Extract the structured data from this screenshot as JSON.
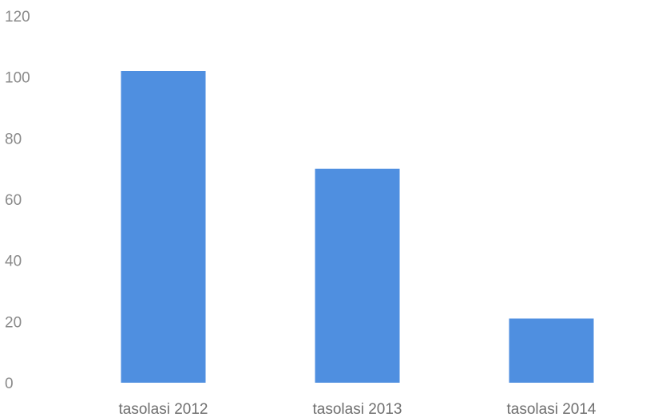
{
  "chart_data": {
    "type": "bar",
    "categories": [
      "tasolasi 2012",
      "tasolasi 2013",
      "tasolasi 2014"
    ],
    "values": [
      102,
      70,
      21
    ],
    "title": "",
    "xlabel": "",
    "ylabel": "",
    "ylim": [
      0,
      120
    ],
    "yticks": [
      0,
      20,
      40,
      60,
      80,
      100,
      120
    ],
    "grid": false,
    "legend": "none",
    "colors": {
      "bar": "#4f8fe0",
      "tick_text": "#8a8a8a",
      "category_text": "#6f6f6f",
      "background": "#ffffff"
    }
  }
}
